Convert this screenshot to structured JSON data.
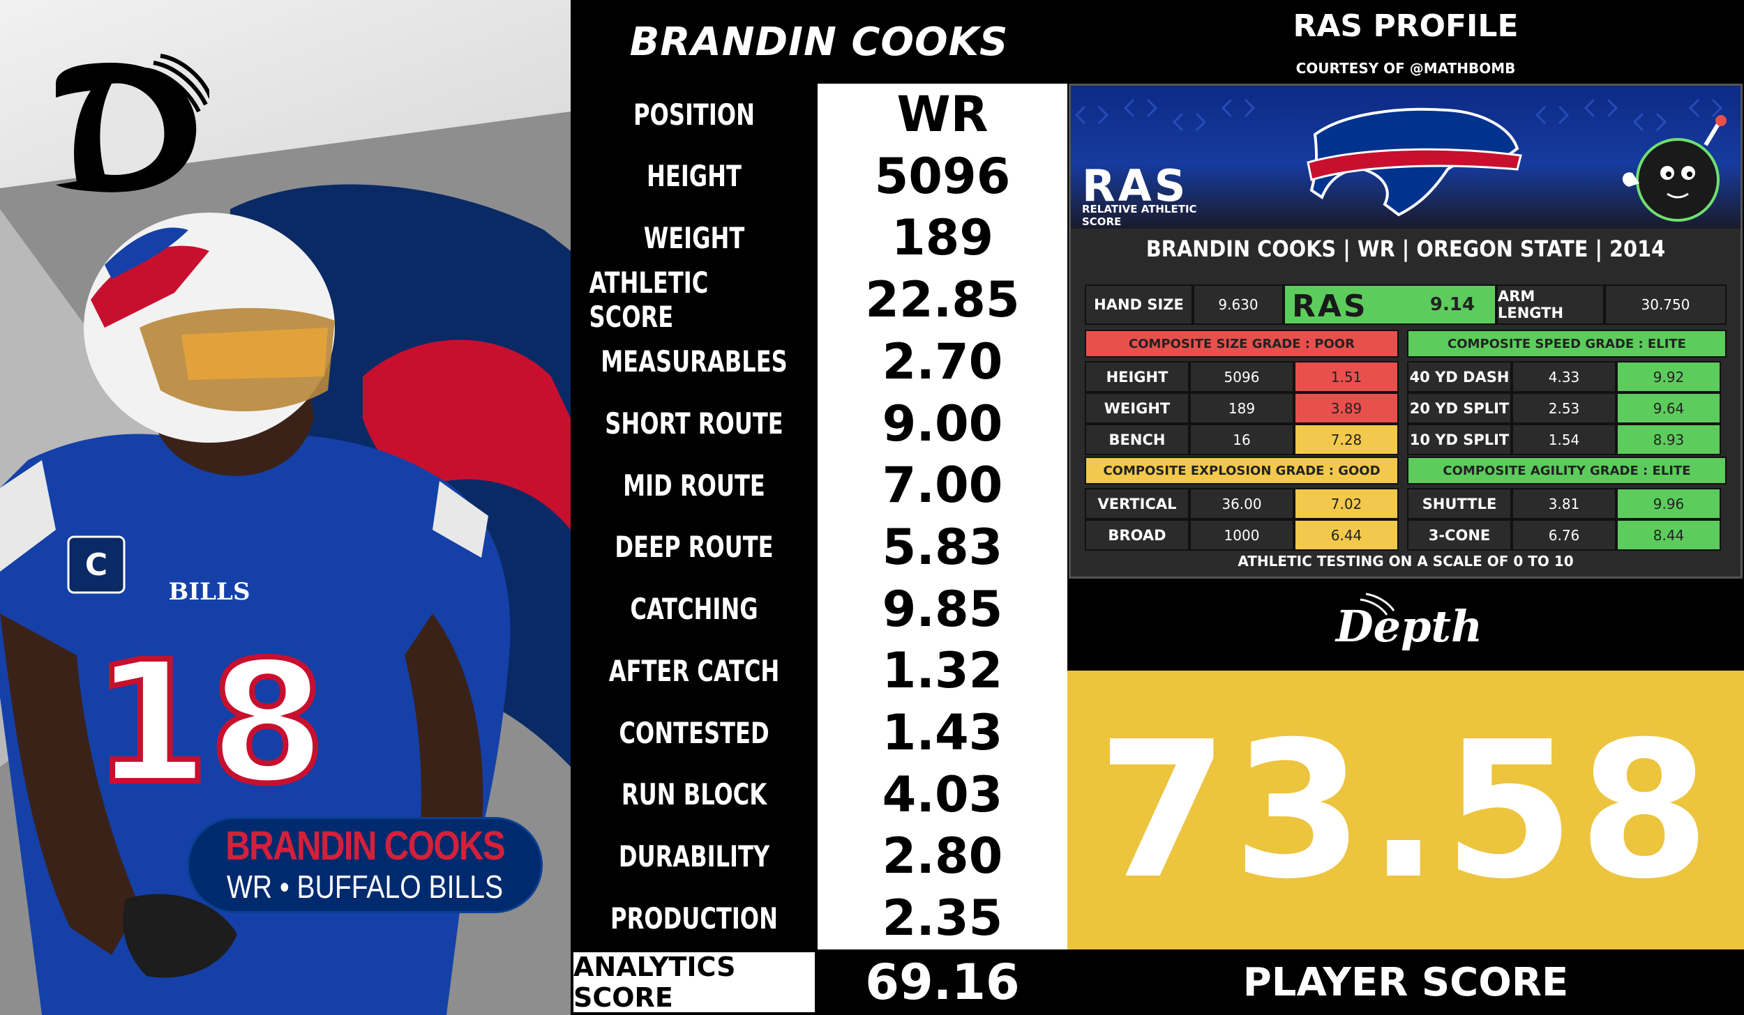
{
  "player": {
    "name": "BRANDIN COOKS",
    "subtitle": "WR • BUFFALO BILLS"
  },
  "stats": [
    {
      "label": "POSITION",
      "value": "WR"
    },
    {
      "label": "HEIGHT",
      "value": "5096"
    },
    {
      "label": "WEIGHT",
      "value": "189"
    },
    {
      "label": "ATHLETIC SCORE",
      "value": "22.85"
    },
    {
      "label": "MEASURABLES",
      "value": "2.70"
    },
    {
      "label": "SHORT ROUTE",
      "value": "9.00"
    },
    {
      "label": "MID ROUTE",
      "value": "7.00"
    },
    {
      "label": "DEEP ROUTE",
      "value": "5.83"
    },
    {
      "label": "CATCHING",
      "value": "9.85"
    },
    {
      "label": "AFTER CATCH",
      "value": "1.32"
    },
    {
      "label": "CONTESTED",
      "value": "1.43"
    },
    {
      "label": "RUN BLOCK",
      "value": "4.03"
    },
    {
      "label": "DURABILITY",
      "value": "2.80"
    },
    {
      "label": "PRODUCTION",
      "value": "2.35"
    }
  ],
  "analytics": {
    "label": "ANALYTICS SCORE",
    "value": "69.16"
  },
  "ras": {
    "heading": "RAS PROFILE",
    "courtesy": "COURTESY OF @MATHBOMB",
    "logo_text": "RAS",
    "logo_subtitle": "RELATIVE ATHLETIC SCORE",
    "player_line": "BRANDIN COOKS | WR | OREGON STATE | 2014",
    "hand_size_label": "HAND SIZE",
    "hand_size": "9.630",
    "total": "9.14",
    "arm_length_label": "ARM LENGTH",
    "arm_length": "30.750",
    "grades": {
      "size": "COMPOSITE SIZE GRADE : POOR",
      "speed": "COMPOSITE SPEED GRADE : ELITE",
      "explosion": "COMPOSITE EXPLOSION GRADE : GOOD",
      "agility": "COMPOSITE AGILITY GRADE : ELITE"
    },
    "size_rows": [
      {
        "label": "HEIGHT",
        "value": "5096",
        "score": "1.51",
        "color": "#e9504d"
      },
      {
        "label": "WEIGHT",
        "value": "189",
        "score": "3.89",
        "color": "#e9504d"
      },
      {
        "label": "BENCH",
        "value": "16",
        "score": "7.28",
        "color": "#f2c94c"
      }
    ],
    "speed_rows": [
      {
        "label": "40 YD DASH",
        "value": "4.33",
        "score": "9.92",
        "color": "#5ccd5c"
      },
      {
        "label": "20 YD SPLIT",
        "value": "2.53",
        "score": "9.64",
        "color": "#5ccd5c"
      },
      {
        "label": "10 YD SPLIT",
        "value": "1.54",
        "score": "8.93",
        "color": "#5ccd5c"
      }
    ],
    "explosion_rows": [
      {
        "label": "VERTICAL",
        "value": "36.00",
        "score": "7.02",
        "color": "#f2c94c"
      },
      {
        "label": "BROAD",
        "value": "1000",
        "score": "6.44",
        "color": "#f2c94c"
      }
    ],
    "agility_rows": [
      {
        "label": "SHUTTLE",
        "value": "3.81",
        "score": "9.96",
        "color": "#5ccd5c"
      },
      {
        "label": "3-CONE",
        "value": "6.76",
        "score": "8.44",
        "color": "#5ccd5c"
      }
    ],
    "footnote": "ATHLETIC TESTING ON A SCALE OF 0 TO 10",
    "colors": {
      "poor": "#e9504d",
      "good": "#f2c94c",
      "elite": "#5ccd5c"
    }
  },
  "depth_logo_text": "Depth",
  "player_score": {
    "label": "PLAYER SCORE",
    "value": "73.58",
    "color": "#ecc43e"
  },
  "photo": {
    "jersey_number": "18",
    "jersey_text": "BILLS"
  }
}
